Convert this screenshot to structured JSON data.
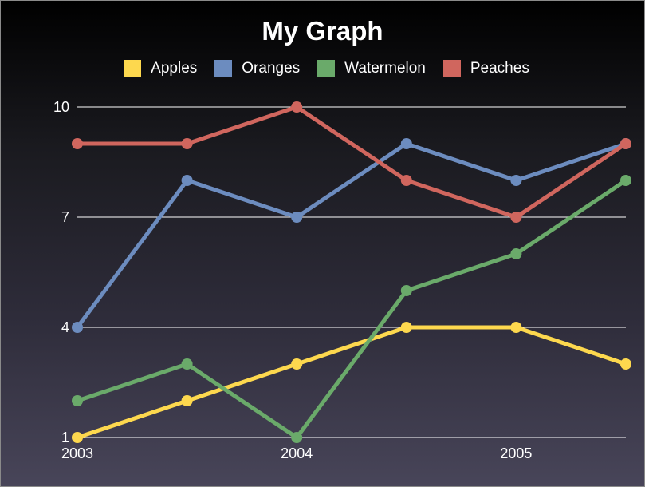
{
  "chart_data": {
    "type": "line",
    "title": "My Graph",
    "xlabel": "",
    "ylabel": "",
    "x": [
      2003,
      2003.5,
      2004,
      2004.5,
      2005,
      2005.5
    ],
    "x_ticks": [
      {
        "value": 2003,
        "label": "2003"
      },
      {
        "value": 2004,
        "label": "2004"
      },
      {
        "value": 2005,
        "label": "2005"
      }
    ],
    "y_ticks": [
      {
        "value": 1,
        "label": "1"
      },
      {
        "value": 4,
        "label": "4"
      },
      {
        "value": 7,
        "label": "7"
      },
      {
        "value": 10,
        "label": "10"
      }
    ],
    "xlim": [
      2003,
      2005.5
    ],
    "ylim": [
      1,
      10
    ],
    "grid": true,
    "legend_position": "top",
    "series": [
      {
        "name": "Apples",
        "color": "#fdd84e",
        "values": [
          1,
          2,
          3,
          4,
          4,
          3
        ]
      },
      {
        "name": "Oranges",
        "color": "#6c8cbf",
        "values": [
          4,
          8,
          7,
          9,
          8,
          9
        ]
      },
      {
        "name": "Watermelon",
        "color": "#6aaa6a",
        "values": [
          2,
          3,
          1,
          5,
          6,
          8
        ]
      },
      {
        "name": "Peaches",
        "color": "#d0665e",
        "values": [
          9,
          9,
          10,
          8,
          7,
          9
        ]
      }
    ]
  }
}
